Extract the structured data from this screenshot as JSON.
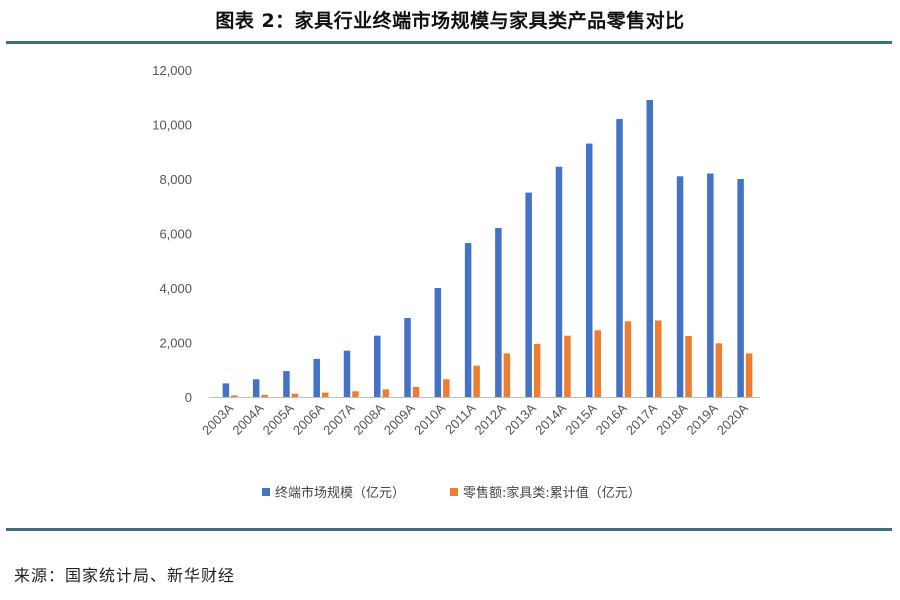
{
  "header": {
    "title": "图表 2：家具行业终端市场规模与家具类产品零售对比"
  },
  "footer": {
    "source": "来源：国家统计局、新华财经"
  },
  "colors": {
    "series1": "#4472c4",
    "series2": "#ed7d31",
    "rule": "#3f6f7e"
  },
  "chart_data": {
    "type": "bar",
    "title": "",
    "xlabel": "",
    "ylabel": "",
    "ylim": [
      0,
      12000
    ],
    "yticks": [
      "0",
      "2,000",
      "4,000",
      "6,000",
      "8,000",
      "10,000",
      "12,000"
    ],
    "grid": false,
    "legend_position": "bottom",
    "categories": [
      "2003A",
      "2004A",
      "2005A",
      "2006A",
      "2007A",
      "2008A",
      "2009A",
      "2010A",
      "2011A",
      "2012A",
      "2013A",
      "2014A",
      "2015A",
      "2016A",
      "2017A",
      "2018A",
      "2019A",
      "2020A"
    ],
    "series": [
      {
        "name": "终端市场规模（亿元）",
        "values": [
          500,
          650,
          950,
          1400,
          1700,
          2250,
          2900,
          4000,
          5650,
          6200,
          7500,
          8450,
          9300,
          10200,
          10900,
          8100,
          8200,
          8000
        ]
      },
      {
        "name": "零售额:家具类:累计值（亿元）",
        "values": [
          60,
          80,
          120,
          160,
          210,
          280,
          370,
          650,
          1150,
          1600,
          1950,
          2250,
          2450,
          2780,
          2810,
          2240,
          1970,
          1600
        ]
      }
    ]
  }
}
